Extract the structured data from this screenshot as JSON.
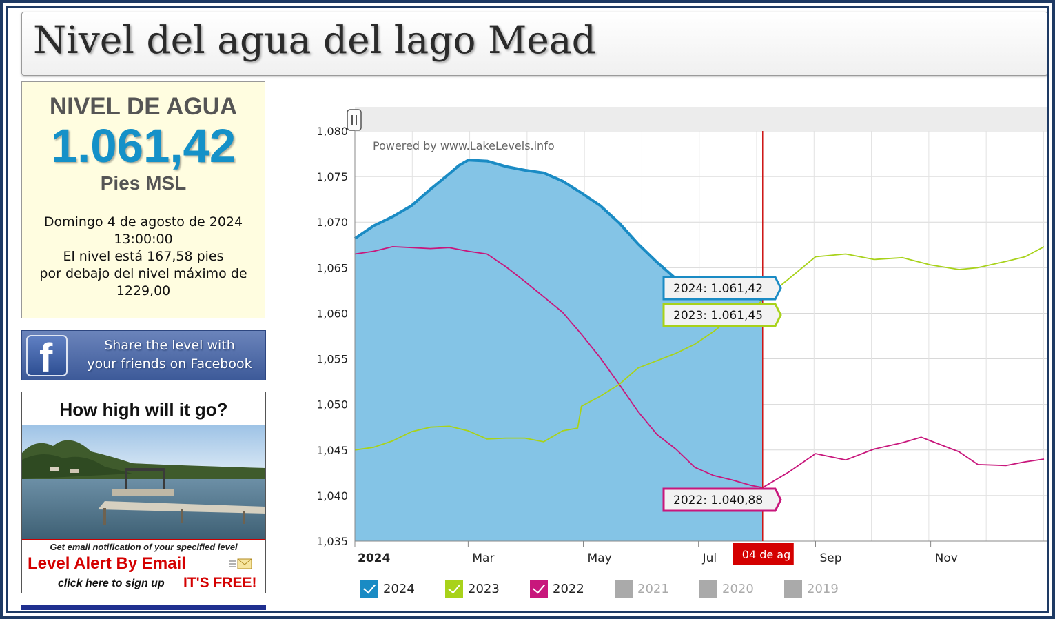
{
  "page": {
    "title": "Nivel del agua del lago Mead"
  },
  "level_card": {
    "heading": "NIVEL DE AGUA",
    "value": "1.061,42",
    "unit": "Pies MSL",
    "date_line": "Domingo 4 de agosto de 2024",
    "time_line": "13:00:00",
    "status_line1": "El nivel está 167,58 pies",
    "status_line2": "por debajo del nivel máximo de",
    "status_line3": "1229,00"
  },
  "facebook_banner": {
    "line1": "Share the level with",
    "line2": "your friends on Facebook",
    "icon": "facebook-icon"
  },
  "ad": {
    "title": "How high will it go?",
    "note": "Get email notification of your specified level",
    "alert": "Level Alert By Email",
    "signup": "click here to sign up",
    "free": "IT'S FREE!",
    "icon": "envelope-icon"
  },
  "chart": {
    "powered_by": "Powered by www.LakeLevels.info",
    "date_flag": "04 de ag",
    "tooltips": [
      {
        "label": "2024: 1.061,42",
        "color": "#1a8bc4"
      },
      {
        "label": "2023: 1.061,45",
        "color": "#a8d21a"
      },
      {
        "label": "2022: 1.040,88",
        "color": "#c8177c"
      }
    ],
    "legend": [
      {
        "label": "2024",
        "color": "#1a8bc4",
        "on": true
      },
      {
        "label": "2023",
        "color": "#a8d21a",
        "on": true
      },
      {
        "label": "2022",
        "color": "#c8177c",
        "on": true
      },
      {
        "label": "2021",
        "color": "#aaaaaa",
        "on": false
      },
      {
        "label": "2020",
        "color": "#aaaaaa",
        "on": false
      },
      {
        "label": "2019",
        "color": "#aaaaaa",
        "on": false
      }
    ]
  },
  "chart_data": {
    "type": "area",
    "ylim": [
      1035,
      1080
    ],
    "yticks": [
      "1,080",
      "1,075",
      "1,070",
      "1,065",
      "1,060",
      "1,055",
      "1,050",
      "1,045",
      "1,040",
      "1,035"
    ],
    "ytick_values": [
      1080,
      1075,
      1070,
      1065,
      1060,
      1055,
      1050,
      1045,
      1040,
      1035
    ],
    "xlim": [
      0,
      365
    ],
    "xticks": [
      {
        "label": "2024",
        "day": 0
      },
      {
        "label": "Mar",
        "day": 60
      },
      {
        "label": "May",
        "day": 121
      },
      {
        "label": "Jul",
        "day": 182
      },
      {
        "label": "Sep",
        "day": 244
      },
      {
        "label": "Nov",
        "day": 305
      }
    ],
    "current_day": 216,
    "series": [
      {
        "name": "2024",
        "color": "#1a8bc4",
        "fill": "#84c4e6",
        "x": [
          0,
          10,
          20,
          30,
          40,
          50,
          55,
          60,
          70,
          80,
          90,
          100,
          110,
          120,
          130,
          140,
          150,
          160,
          170,
          180,
          190,
          200,
          210,
          216
        ],
        "y": [
          1068.2,
          1069.6,
          1070.6,
          1071.8,
          1073.6,
          1075.3,
          1076.2,
          1076.8,
          1076.7,
          1076.1,
          1075.7,
          1075.4,
          1074.5,
          1073.2,
          1071.8,
          1069.9,
          1067.6,
          1065.6,
          1063.8,
          1062.8,
          1062.4,
          1062.3,
          1062.0,
          1061.42
        ]
      },
      {
        "name": "2023",
        "color": "#a8d21a",
        "x": [
          0,
          10,
          20,
          30,
          40,
          50,
          60,
          70,
          80,
          90,
          100,
          110,
          118,
          120,
          130,
          140,
          150,
          160,
          170,
          180,
          190,
          200,
          210,
          216,
          230,
          244,
          260,
          275,
          290,
          305,
          320,
          330,
          345,
          355,
          365
        ],
        "y": [
          1045.0,
          1045.3,
          1046.0,
          1047.0,
          1047.5,
          1047.6,
          1047.1,
          1046.2,
          1046.3,
          1046.3,
          1045.9,
          1047.1,
          1047.4,
          1049.8,
          1050.9,
          1052.2,
          1054.0,
          1054.8,
          1055.6,
          1056.6,
          1058.0,
          1059.6,
          1060.4,
          1061.45,
          1063.8,
          1066.2,
          1066.5,
          1065.9,
          1066.1,
          1065.3,
          1064.8,
          1065.0,
          1065.7,
          1066.2,
          1067.3
        ]
      },
      {
        "name": "2022",
        "color": "#c8177c",
        "x": [
          0,
          10,
          20,
          30,
          40,
          50,
          60,
          70,
          80,
          90,
          100,
          110,
          120,
          130,
          140,
          150,
          160,
          170,
          180,
          190,
          200,
          210,
          216,
          230,
          244,
          260,
          275,
          290,
          300,
          305,
          320,
          330,
          345,
          355,
          365
        ],
        "y": [
          1066.5,
          1066.8,
          1067.3,
          1067.2,
          1067.1,
          1067.2,
          1066.8,
          1066.5,
          1065.1,
          1063.5,
          1061.8,
          1060.1,
          1057.7,
          1055.1,
          1052.2,
          1049.2,
          1046.7,
          1045.1,
          1043.1,
          1042.2,
          1041.7,
          1041.1,
          1040.88,
          1042.6,
          1044.6,
          1043.9,
          1045.1,
          1045.8,
          1046.4,
          1046.0,
          1044.8,
          1043.4,
          1043.3,
          1043.7,
          1044.0
        ]
      }
    ]
  }
}
